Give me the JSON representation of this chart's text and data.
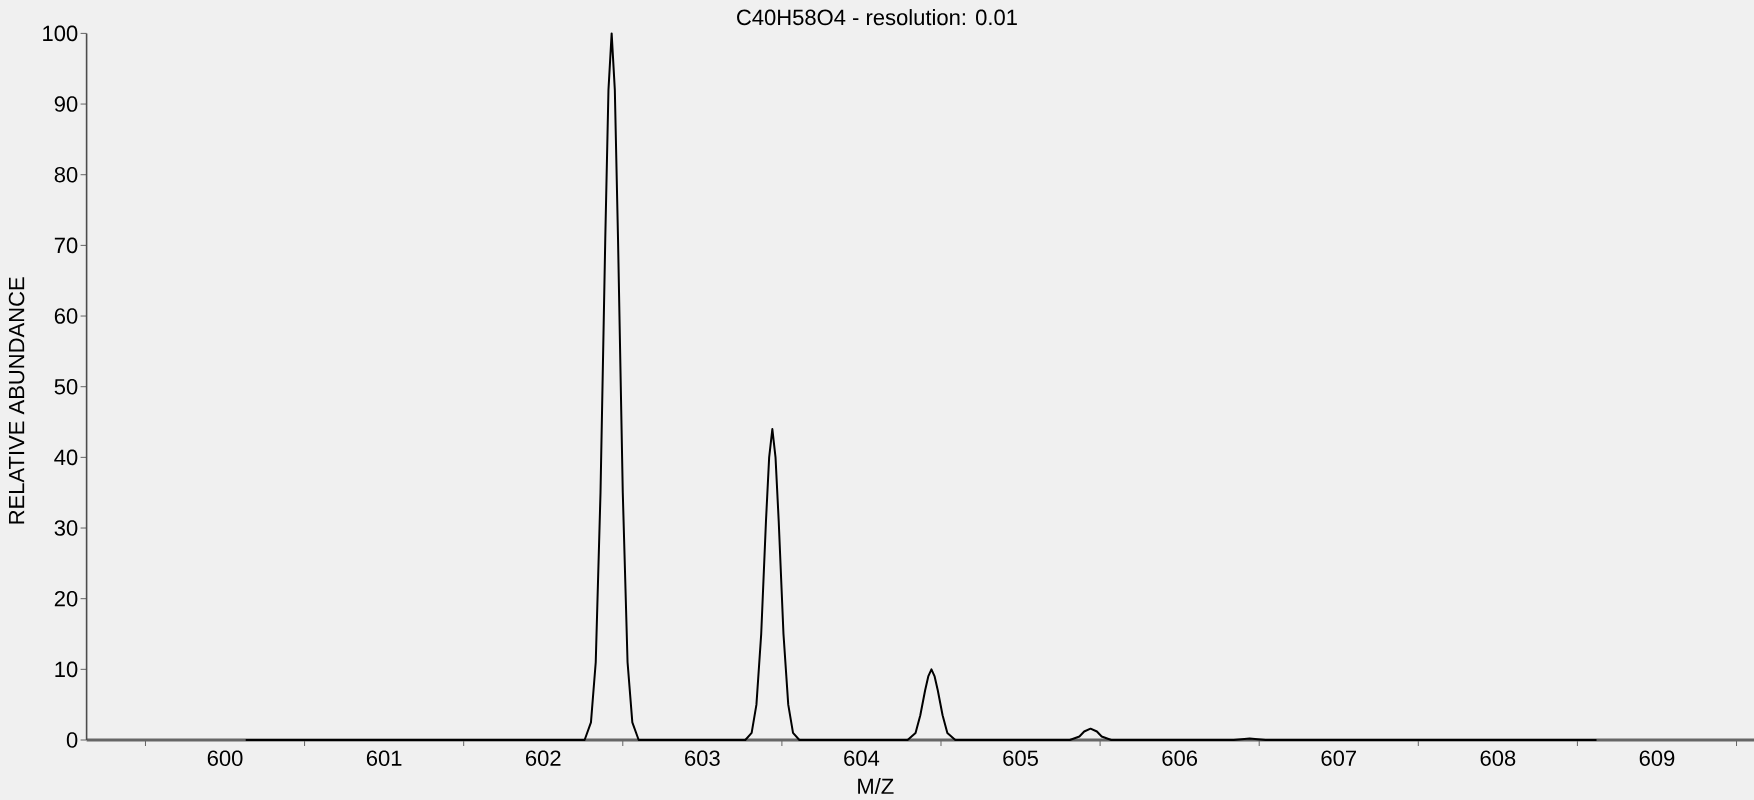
{
  "chart_data": {
    "type": "line",
    "title": "C40H58O4 - resolution: 0.01",
    "xlabel": "M/Z",
    "ylabel": "RELATIVE ABUNDANCE",
    "color": "#000000",
    "line_style": "solid",
    "x": [
      600.13,
      602.26,
      602.3,
      602.33,
      602.36,
      602.39,
      602.41,
      602.43,
      602.45,
      602.47,
      602.5,
      602.53,
      602.56,
      602.6,
      603.27,
      603.31,
      603.34,
      603.37,
      603.4,
      603.42,
      603.44,
      603.46,
      603.48,
      603.51,
      603.54,
      603.57,
      603.61,
      604.29,
      604.34,
      604.37,
      604.4,
      604.42,
      604.44,
      604.46,
      604.48,
      604.51,
      604.54,
      604.59,
      605.31,
      605.37,
      605.4,
      605.44,
      605.48,
      605.51,
      605.57,
      606.34,
      606.44,
      606.54,
      608.62
    ],
    "values": [
      0,
      0,
      2.5,
      11,
      35,
      71,
      92,
      100,
      92,
      71,
      35,
      11,
      2.5,
      0,
      0,
      1,
      5,
      15,
      31,
      40,
      44,
      40,
      31,
      15,
      5,
      1,
      0,
      0,
      1,
      3.5,
      7,
      9,
      10,
      9,
      7,
      3.5,
      1,
      0,
      0,
      0.5,
      1.2,
      1.6,
      1.2,
      0.5,
      0,
      0,
      0.2,
      0,
      0
    ],
    "xlim": [
      599.13,
      609.61
    ],
    "ylim": [
      0,
      100
    ],
    "xticks": [
      {
        "value": 599.5,
        "label": null
      },
      600,
      {
        "value": 600.5,
        "label": null
      },
      601,
      {
        "value": 601.5,
        "label": null
      },
      602,
      {
        "value": 602.5,
        "label": null
      },
      603,
      {
        "value": 603.5,
        "label": null
      },
      604,
      {
        "value": 604.5,
        "label": null
      },
      605,
      {
        "value": 605.5,
        "label": null
      },
      606,
      {
        "value": 606.5,
        "label": null
      },
      607,
      {
        "value": 607.5,
        "label": null
      },
      608,
      {
        "value": 608.5,
        "label": null
      },
      609,
      {
        "value": 609.5,
        "label": null
      }
    ],
    "yticks": [
      0,
      10,
      20,
      30,
      40,
      50,
      60,
      70,
      80,
      90,
      100
    ]
  }
}
